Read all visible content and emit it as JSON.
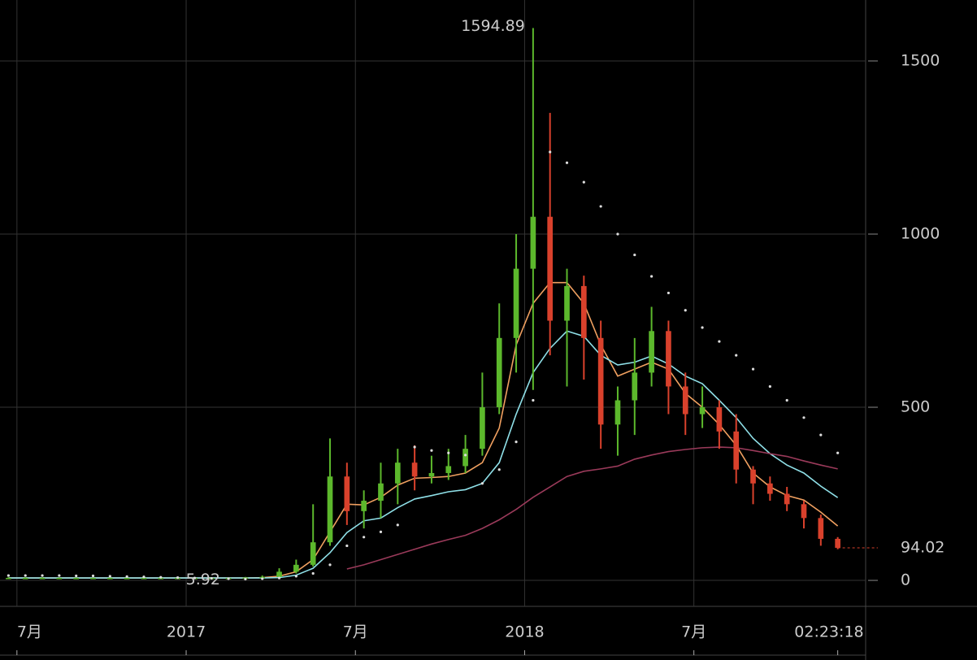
{
  "chart_data": {
    "type": "candlestick",
    "x": [
      0,
      1,
      2,
      3,
      4,
      5,
      6,
      7,
      8,
      9,
      10,
      11,
      12,
      13,
      14,
      15,
      16,
      17,
      18,
      19,
      20,
      21,
      22,
      23,
      24,
      25,
      26,
      27,
      28,
      29,
      30,
      31,
      32,
      33,
      34,
      35,
      36,
      37,
      38,
      39,
      40,
      41,
      42,
      43,
      44,
      45,
      46,
      47,
      48,
      49
    ],
    "open": [
      7,
      7,
      7,
      7,
      7,
      7,
      7,
      7,
      7,
      7,
      7,
      7,
      7,
      7,
      7,
      8,
      10,
      25,
      45,
      110,
      300,
      200,
      230,
      280,
      340,
      300,
      310,
      330,
      380,
      500,
      700,
      900,
      1050,
      750,
      850,
      700,
      450,
      520,
      600,
      720,
      560,
      480,
      500,
      430,
      320,
      280,
      250,
      220,
      180,
      120
    ],
    "high": [
      9,
      9,
      9,
      8,
      8,
      8,
      8,
      8,
      8,
      8,
      8,
      8,
      8,
      8,
      10,
      14,
      35,
      60,
      220,
      410,
      340,
      260,
      340,
      380,
      390,
      360,
      380,
      420,
      600,
      800,
      1000,
      1594.89,
      1350,
      900,
      880,
      750,
      560,
      700,
      790,
      750,
      600,
      560,
      520,
      480,
      330,
      300,
      270,
      230,
      190,
      125
    ],
    "low": [
      6,
      6,
      6,
      6,
      6,
      6,
      6,
      6,
      6,
      6,
      5.92,
      6,
      6,
      6,
      6,
      7,
      9,
      20,
      40,
      100,
      160,
      150,
      180,
      220,
      260,
      280,
      290,
      310,
      360,
      480,
      600,
      550,
      650,
      560,
      580,
      380,
      360,
      420,
      560,
      480,
      420,
      440,
      380,
      280,
      220,
      230,
      200,
      150,
      100,
      90
    ],
    "close": [
      7,
      7,
      7,
      7,
      7,
      7,
      7,
      7,
      7,
      7,
      7,
      7,
      7,
      7,
      8,
      10,
      25,
      45,
      110,
      300,
      200,
      230,
      280,
      340,
      300,
      310,
      330,
      380,
      500,
      700,
      900,
      1050,
      750,
      850,
      700,
      450,
      520,
      600,
      720,
      560,
      480,
      500,
      430,
      320,
      280,
      250,
      220,
      180,
      120,
      94.02
    ],
    "up_color": "#5cb82c",
    "down_color": "#d9412c",
    "series": [
      {
        "color": "#f0a060",
        "values": [
          7,
          7,
          7,
          7,
          7,
          7,
          7,
          7,
          7,
          7,
          7,
          7,
          7,
          7,
          7,
          8,
          12,
          25,
          60,
          140,
          220,
          218,
          240,
          275,
          295,
          297,
          300,
          310,
          340,
          440,
          680,
          800,
          860,
          860,
          800,
          680,
          590,
          610,
          630,
          610,
          540,
          500,
          450,
          390,
          310,
          270,
          245,
          232,
          197,
          157
        ]
      },
      {
        "color": "#8fe0e8",
        "values": [
          7,
          7,
          7,
          7,
          7,
          7,
          7,
          7,
          7,
          7,
          7,
          7,
          7,
          7,
          7,
          7,
          8,
          15,
          35,
          80,
          138,
          172,
          180,
          210,
          235,
          245,
          256,
          262,
          280,
          340,
          480,
          600,
          670,
          720,
          705,
          650,
          622,
          630,
          648,
          625,
          590,
          568,
          520,
          470,
          410,
          366,
          333,
          310,
          272,
          239
        ]
      },
      {
        "color": "#9a3a5a",
        "values": [
          null,
          null,
          null,
          null,
          null,
          null,
          null,
          null,
          null,
          null,
          null,
          null,
          null,
          null,
          null,
          null,
          null,
          null,
          null,
          null,
          33,
          45,
          60,
          75,
          90,
          105,
          118,
          130,
          150,
          175,
          205,
          240,
          270,
          300,
          315,
          322,
          330,
          350,
          362,
          372,
          378,
          383,
          385,
          383,
          375,
          366,
          358,
          345,
          333,
          322
        ]
      }
    ],
    "sar": {
      "color": "#dddddd",
      "values": [
        14,
        14,
        14,
        14,
        13,
        13,
        12,
        11,
        10,
        9,
        8,
        7,
        6,
        5,
        4,
        5,
        7,
        12,
        20,
        45,
        100,
        125,
        140,
        160,
        385,
        375,
        368,
        362,
        280,
        320,
        400,
        520,
        1237,
        1206,
        1150,
        1080,
        1000,
        940,
        878,
        830,
        780,
        730,
        690,
        650,
        610,
        560,
        520,
        470,
        420,
        368
      ]
    },
    "max_label": "1594.89",
    "min_label": "5.92",
    "last_label": "94.02",
    "xlim": [
      -0.5,
      50.65
    ],
    "xticks": [
      {
        "value": 0.5,
        "label": "7月"
      },
      {
        "value": 10.5,
        "label": "2017"
      },
      {
        "value": 20.5,
        "label": "7月"
      },
      {
        "value": 30.5,
        "label": "2018"
      },
      {
        "value": 40.5,
        "label": "7月"
      },
      {
        "value": 49,
        "label": "02:23:18"
      }
    ],
    "ylim": [
      -75,
      1676
    ],
    "yticks": [
      0,
      500,
      1000,
      1500
    ],
    "grid": true
  }
}
